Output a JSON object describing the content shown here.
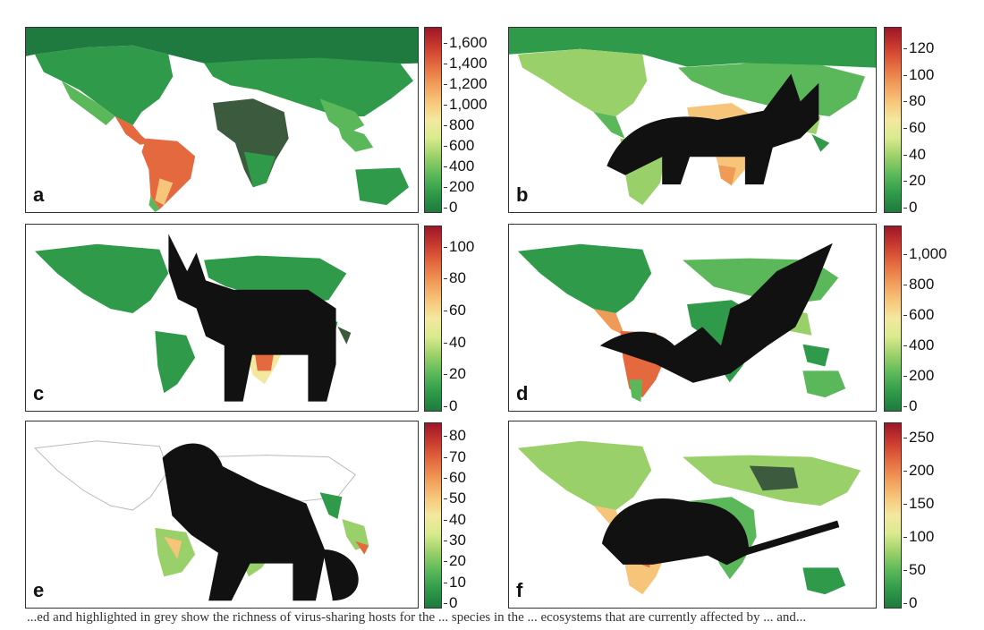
{
  "panels": [
    {
      "label": "a",
      "animal": "none",
      "colorbar": {
        "ticks": [
          "1,600",
          "1,400",
          "1,200",
          "1,000",
          "800",
          "600",
          "400",
          "200",
          "0"
        ],
        "min": 0,
        "max": 1700
      }
    },
    {
      "label": "b",
      "animal": "fox-icon",
      "colorbar": {
        "ticks": [
          "120",
          "100",
          "80",
          "60",
          "40",
          "20",
          "0"
        ],
        "min": 0,
        "max": 132
      }
    },
    {
      "label": "c",
      "animal": "antelope-icon",
      "colorbar": {
        "ticks": [
          "100",
          "80",
          "60",
          "40",
          "20",
          "0"
        ],
        "min": 0,
        "max": 110
      }
    },
    {
      "label": "d",
      "animal": "bat-icon",
      "colorbar": {
        "ticks": [
          "1,000",
          "800",
          "600",
          "400",
          "200",
          "0"
        ],
        "min": 0,
        "max": 1150
      }
    },
    {
      "label": "e",
      "animal": "monkey-icon",
      "colorbar": {
        "ticks": [
          "80",
          "70",
          "60",
          "50",
          "40",
          "30",
          "20",
          "10",
          "0"
        ],
        "min": 0,
        "max": 84
      }
    },
    {
      "label": "f",
      "animal": "rodent-icon",
      "colorbar": {
        "ticks": [
          "250",
          "200",
          "150",
          "100",
          "50",
          "0"
        ],
        "min": 0,
        "max": 265
      }
    }
  ],
  "colormap": [
    "#1e7a3e",
    "#2f9a49",
    "#5bb85a",
    "#9ad06a",
    "#d9ea8e",
    "#f4e8a0",
    "#f7c57a",
    "#f09a58",
    "#e4693f",
    "#c93a2e",
    "#9e1528"
  ],
  "caption": "...ed and highlighted in grey show the richness of virus-sharing hosts for the ... species in the ... ecosystems that are currently affected by ... and..."
}
